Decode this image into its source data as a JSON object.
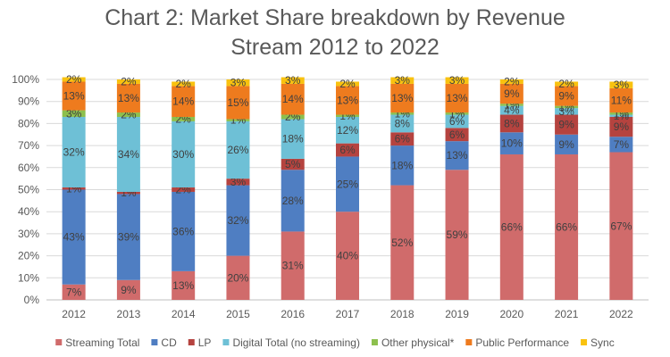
{
  "chart_data": {
    "type": "bar",
    "stacked": true,
    "title": "Chart 2: Market Share breakdown by Revenue\nStream 2012 to 2022",
    "xlabel": "",
    "ylabel": "",
    "ylim": [
      0,
      100
    ],
    "y_ticks": [
      "0%",
      "10%",
      "20%",
      "30%",
      "40%",
      "50%",
      "60%",
      "70%",
      "80%",
      "90%",
      "100%"
    ],
    "grid": true,
    "legend_position": "bottom",
    "categories": [
      "2012",
      "2013",
      "2014",
      "2015",
      "2016",
      "2017",
      "2018",
      "2019",
      "2020",
      "2021",
      "2022"
    ],
    "series": [
      {
        "name": "Streaming Total",
        "color": "#D06B6B",
        "values": [
          7,
          9,
          13,
          20,
          31,
          40,
          52,
          59,
          66,
          66,
          67
        ],
        "labels": [
          "7%",
          "9%",
          "13%",
          "20%",
          "31%",
          "40%",
          "52%",
          "59%",
          "66%",
          "66%",
          "67%"
        ]
      },
      {
        "name": "CD",
        "color": "#4F7EC2",
        "values": [
          43,
          39,
          36,
          32,
          28,
          25,
          18,
          13,
          10,
          9,
          7
        ],
        "labels": [
          "43%",
          "39%",
          "36%",
          "32%",
          "28%",
          "25%",
          "18%",
          "13%",
          "10%",
          "9%",
          "7%"
        ]
      },
      {
        "name": "LP",
        "color": "#B5433F",
        "values": [
          1,
          1,
          2,
          3,
          5,
          6,
          6,
          6,
          8,
          9,
          9
        ],
        "labels": [
          "1%",
          "1%",
          "2%",
          "3%",
          "5%",
          "6%",
          "6%",
          "6%",
          "8%",
          "9%",
          "9%"
        ]
      },
      {
        "name": "Digital Total (no streaming)",
        "color": "#6EC0D6",
        "values": [
          32,
          34,
          30,
          26,
          18,
          12,
          8,
          6,
          4,
          3,
          1
        ],
        "labels": [
          "32%",
          "34%",
          "30%",
          "26%",
          "18%",
          "12%",
          "8%",
          "6%",
          "4%",
          "3%",
          "1%"
        ]
      },
      {
        "name": "Other physical*",
        "color": "#8DC04E",
        "values": [
          3,
          2,
          2,
          1,
          2,
          1,
          1,
          1,
          1,
          1,
          1
        ],
        "labels": [
          "3%",
          "2%",
          "2%",
          "1%",
          "2%",
          "1%",
          "1%",
          "1%",
          "1%",
          "1%",
          "1%"
        ]
      },
      {
        "name": "Public Performance",
        "color": "#EE7B1E",
        "values": [
          13,
          13,
          14,
          15,
          14,
          13,
          13,
          13,
          9,
          9,
          11
        ],
        "labels": [
          "13%",
          "13%",
          "14%",
          "15%",
          "14%",
          "13%",
          "13%",
          "13%",
          "9%",
          "9%",
          "11%"
        ]
      },
      {
        "name": "Sync",
        "color": "#F9C20F",
        "values": [
          2,
          2,
          2,
          3,
          3,
          2,
          3,
          3,
          2,
          2,
          3
        ],
        "labels": [
          "2%",
          "2%",
          "2%",
          "3%",
          "3%",
          "2%",
          "3%",
          "3%",
          "2%",
          "2%",
          "3%"
        ]
      }
    ]
  }
}
